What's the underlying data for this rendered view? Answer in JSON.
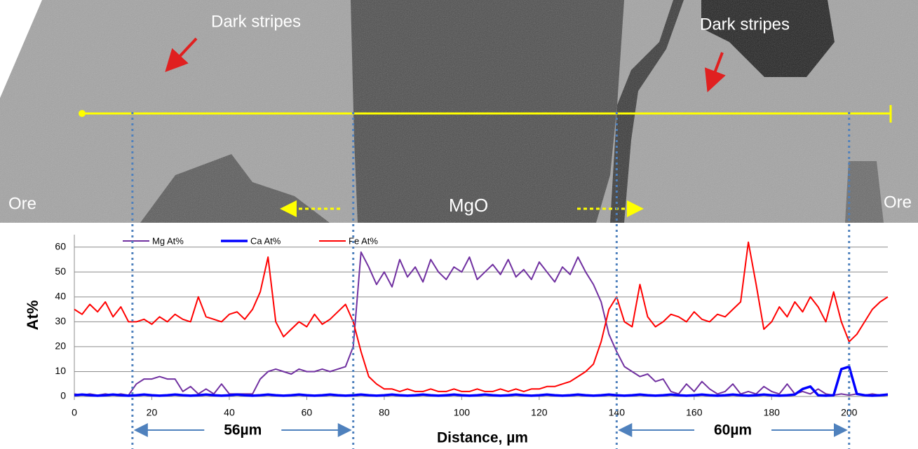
{
  "image": {
    "labels": [
      "Dark stripes",
      "Dark stripes",
      "Ore",
      "Ore",
      "MgO"
    ]
  },
  "chart_data": {
    "type": "line",
    "x_label": "Distance, µm",
    "y_label": "At%",
    "xlim": [
      0,
      210
    ],
    "xticks": [
      0,
      20,
      40,
      60,
      80,
      100,
      120,
      140,
      160,
      180,
      200
    ],
    "ylim": [
      0,
      65
    ],
    "yticks": [
      0,
      10,
      20,
      30,
      40,
      50,
      60
    ],
    "grid": true,
    "legend": "top",
    "x": [
      0,
      2,
      4,
      6,
      8,
      10,
      12,
      14,
      16,
      18,
      20,
      22,
      24,
      26,
      28,
      30,
      32,
      34,
      36,
      38,
      40,
      42,
      44,
      46,
      48,
      50,
      52,
      54,
      56,
      58,
      60,
      62,
      64,
      66,
      68,
      70,
      72,
      74,
      76,
      78,
      80,
      82,
      84,
      86,
      88,
      90,
      92,
      94,
      96,
      98,
      100,
      102,
      104,
      106,
      108,
      110,
      112,
      114,
      116,
      118,
      120,
      122,
      124,
      126,
      128,
      130,
      132,
      134,
      136,
      138,
      140,
      142,
      144,
      146,
      148,
      150,
      152,
      154,
      156,
      158,
      160,
      162,
      164,
      166,
      168,
      170,
      172,
      174,
      176,
      178,
      180,
      182,
      184,
      186,
      188,
      190,
      192,
      194,
      196,
      198,
      200,
      202,
      204,
      206,
      208,
      210
    ],
    "series": [
      {
        "name": "Mg At%",
        "color": "#7030a0",
        "width": 2,
        "values": [
          1,
          0.5,
          1,
          0.5,
          1,
          0.5,
          1,
          0.5,
          5,
          7,
          7,
          8,
          7,
          7,
          2,
          4,
          1,
          3,
          1,
          5,
          1,
          1,
          1,
          1,
          7,
          10,
          11,
          10,
          9,
          11,
          10,
          10,
          11,
          10,
          11,
          12,
          20,
          58,
          52,
          45,
          50,
          44,
          55,
          48,
          52,
          46,
          55,
          50,
          47,
          52,
          50,
          56,
          47,
          50,
          53,
          49,
          55,
          48,
          51,
          47,
          54,
          50,
          46,
          52,
          49,
          56,
          50,
          45,
          38,
          25,
          18,
          12,
          10,
          8,
          9,
          6,
          7,
          2,
          1,
          5,
          2,
          6,
          3,
          1,
          2,
          5,
          1,
          2,
          1,
          4,
          2,
          1,
          5,
          1,
          2,
          1,
          3,
          1,
          0.5,
          1,
          0.5,
          1,
          0.5,
          1,
          0.5,
          1
        ]
      },
      {
        "name": "Ca At%",
        "color": "#0000ff",
        "width": 3.5,
        "values": [
          0.5,
          0.8,
          0.5,
          0.3,
          0.5,
          0.8,
          0.5,
          0.3,
          0.5,
          0.8,
          0.5,
          0.3,
          0.5,
          0.8,
          0.5,
          0.3,
          0.5,
          0.8,
          0.5,
          0.3,
          0.5,
          0.8,
          0.5,
          0.3,
          0.5,
          0.8,
          0.5,
          0.3,
          0.5,
          0.8,
          0.5,
          0.3,
          0.5,
          0.8,
          0.5,
          0.3,
          0.5,
          0.8,
          0.5,
          0.3,
          0.5,
          0.8,
          0.5,
          0.3,
          0.5,
          0.8,
          0.5,
          0.3,
          0.5,
          0.8,
          0.5,
          0.3,
          0.5,
          0.8,
          0.5,
          0.3,
          0.5,
          0.8,
          0.5,
          0.3,
          0.5,
          0.8,
          0.5,
          0.3,
          0.5,
          0.8,
          0.5,
          0.3,
          0.5,
          0.8,
          0.5,
          0.3,
          0.5,
          0.8,
          0.5,
          0.3,
          0.5,
          0.8,
          0.5,
          0.3,
          0.5,
          0.8,
          0.5,
          0.3,
          0.5,
          0.8,
          0.5,
          0.3,
          0.5,
          0.8,
          0.5,
          0.3,
          0.5,
          0.8,
          3,
          4,
          0.5,
          0.3,
          0.5,
          11,
          12,
          1,
          0.5,
          0.3,
          0.5,
          0.8
        ]
      },
      {
        "name": "Fe At%",
        "color": "#ff0000",
        "width": 2,
        "values": [
          35,
          33,
          37,
          34,
          38,
          32,
          36,
          30,
          30,
          31,
          29,
          32,
          30,
          33,
          31,
          30,
          40,
          32,
          31,
          30,
          33,
          34,
          31,
          35,
          42,
          56,
          30,
          24,
          27,
          30,
          28,
          33,
          29,
          31,
          34,
          37,
          30,
          18,
          8,
          5,
          3,
          3,
          2,
          3,
          2,
          2,
          3,
          2,
          2,
          3,
          2,
          2,
          3,
          2,
          2,
          3,
          2,
          3,
          2,
          3,
          3,
          4,
          4,
          5,
          6,
          8,
          10,
          13,
          22,
          35,
          40,
          30,
          28,
          45,
          32,
          28,
          30,
          33,
          32,
          30,
          34,
          31,
          30,
          33,
          32,
          35,
          38,
          62,
          45,
          27,
          30,
          36,
          32,
          38,
          34,
          40,
          36,
          30,
          42,
          30,
          22,
          25,
          30,
          35,
          38,
          40
        ]
      }
    ],
    "markers": [
      15,
      72,
      140,
      200
    ],
    "annotations": [
      {
        "label": "56µm",
        "from": 15,
        "to": 72
      },
      {
        "label": "60µm",
        "from": 140,
        "to": 200
      }
    ]
  }
}
